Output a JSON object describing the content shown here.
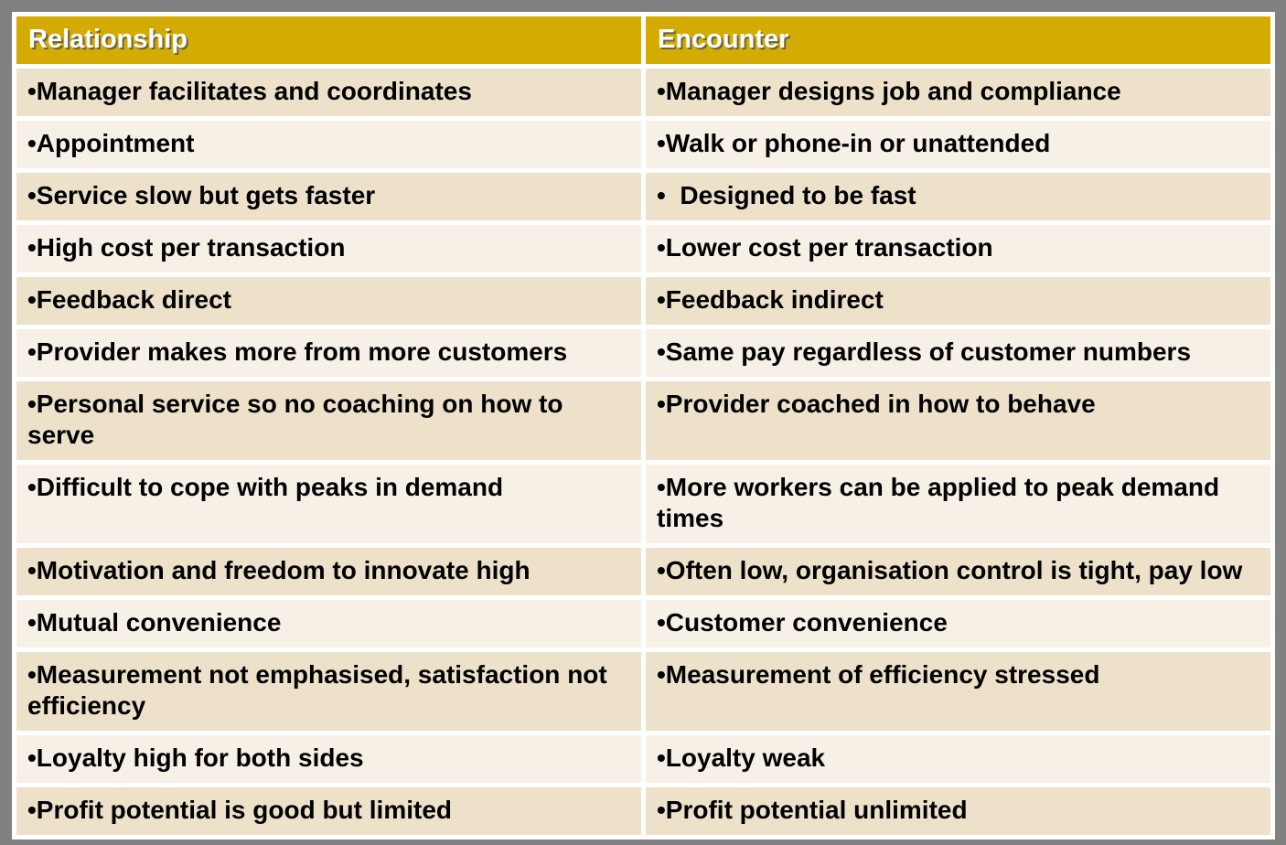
{
  "colors": {
    "frame_gray": "#818181",
    "separator_white": "#ffffff",
    "header_bg": "#d4ab00",
    "header_text": "#ffffff",
    "row_odd_bg": "#ede1ca",
    "row_even_bg": "#f7f0e6",
    "cell_text": "#000000"
  },
  "table": {
    "columns": [
      {
        "label": "Relationship"
      },
      {
        "label": "Encounter"
      }
    ],
    "rows": [
      {
        "relationship": "•Manager facilitates and coordinates",
        "encounter": "•Manager designs job and compliance"
      },
      {
        "relationship": "•Appointment",
        "encounter": "•Walk or phone-in or unattended"
      },
      {
        "relationship": "•Service slow but gets faster",
        "encounter": "•  Designed to be fast"
      },
      {
        "relationship": "•High cost per transaction",
        "encounter": "•Lower cost per transaction"
      },
      {
        "relationship": "•Feedback direct",
        "encounter": "•Feedback indirect"
      },
      {
        "relationship": "•Provider makes more from more customers",
        "encounter": "•Same pay regardless of customer numbers"
      },
      {
        "relationship": "•Personal service so no coaching on how to serve",
        "encounter": "•Provider coached in how to behave"
      },
      {
        "relationship": "•Difficult to cope with peaks in demand",
        "encounter": "•More workers can be applied to peak demand times"
      },
      {
        "relationship": "•Motivation and freedom to innovate high",
        "encounter": "•Often low, organisation control is tight, pay low"
      },
      {
        "relationship": "•Mutual convenience",
        "encounter": "•Customer convenience"
      },
      {
        "relationship": "•Measurement not emphasised, satisfaction not efficiency",
        "encounter": "•Measurement of efficiency stressed"
      },
      {
        "relationship": "•Loyalty high for both sides",
        "encounter": "•Loyalty weak"
      },
      {
        "relationship": "•Profit potential is good but limited",
        "encounter": "•Profit potential unlimited"
      }
    ]
  }
}
